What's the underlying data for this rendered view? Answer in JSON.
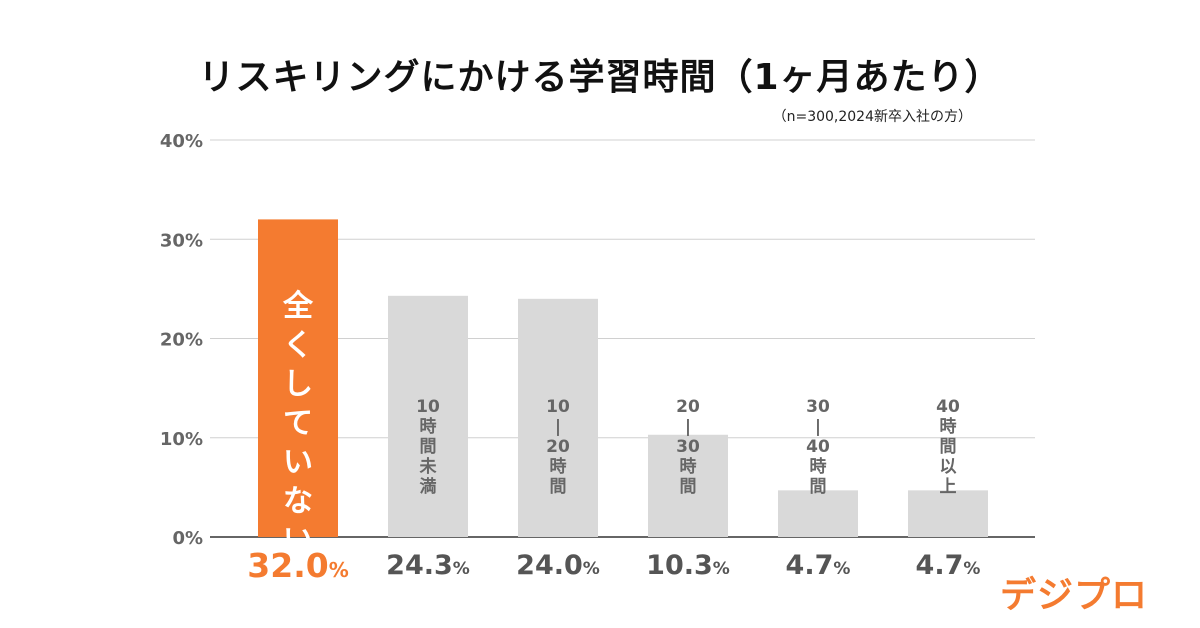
{
  "chart_data": {
    "type": "bar",
    "title": "リスキリングにかける学習時間（1ヶ月あたり）",
    "subtitle": "（n=300,2024新卒入社の方）",
    "categories": [
      "全くしていない",
      "10時間未満",
      "10—20時間",
      "20—30時間",
      "30—40時間",
      "40時間以上"
    ],
    "category_labels_vertical": [
      "全\nく\nし\nて\nい\nな\nい",
      "10\n時\n間\n未\n満",
      "10\n|\n20\n時\n間",
      "20\n|\n30\n時\n間",
      "30\n|\n40\n時\n間",
      "40\n時\n間\n以\n上"
    ],
    "values": [
      32.0,
      24.3,
      24.0,
      10.3,
      4.7,
      4.7
    ],
    "value_labels": [
      {
        "num": "32.0",
        "unit": "%"
      },
      {
        "num": "24.3",
        "unit": "%"
      },
      {
        "num": "24.0",
        "unit": "%"
      },
      {
        "num": "10.3",
        "unit": "%"
      },
      {
        "num": "4.7",
        "unit": "%"
      },
      {
        "num": "4.7",
        "unit": "%"
      }
    ],
    "highlight_index": 0,
    "ylim": [
      0,
      40
    ],
    "yticks": [
      0,
      10,
      20,
      30,
      40
    ],
    "ytick_labels": [
      "0%",
      "10%",
      "20%",
      "30%",
      "40%"
    ],
    "grid": true,
    "colors": {
      "highlight": "#f47b30",
      "bar": "#d9d9d9",
      "grid": "#d0d0d0",
      "axis": "#333333"
    }
  },
  "brand": {
    "logo_text": "デジプロ",
    "color": "#f47b30"
  }
}
